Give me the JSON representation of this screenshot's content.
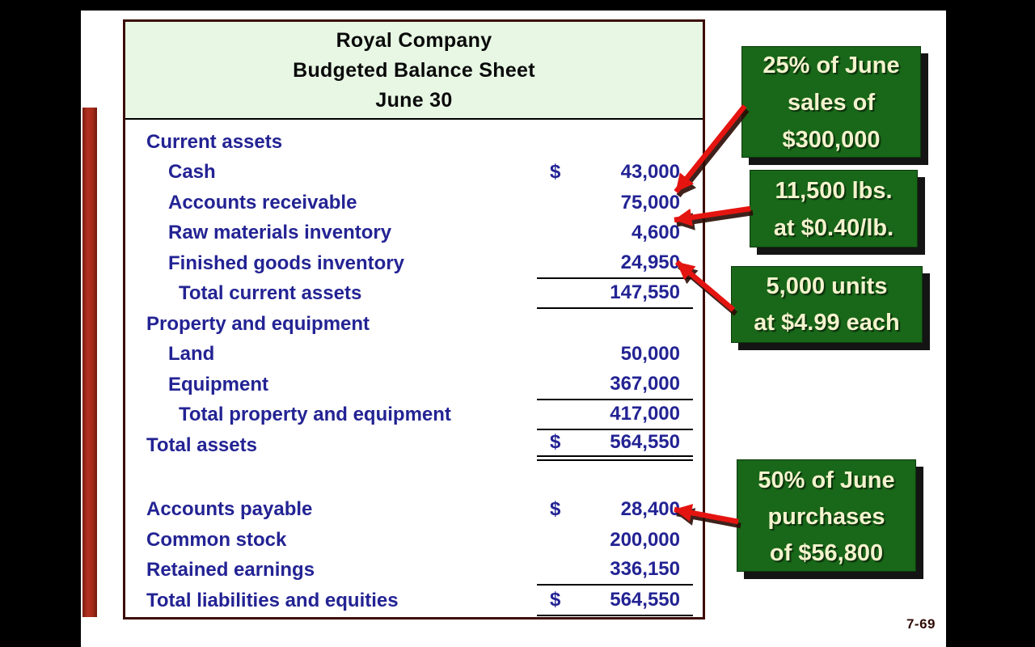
{
  "page": {
    "number": "7-69"
  },
  "sheet": {
    "title_line1": "Royal Company",
    "title_line2": "Budgeted Balance Sheet",
    "title_line3": "June 30",
    "rows": [
      {
        "label": "Current assets",
        "indent": 0
      },
      {
        "label": "Cash",
        "indent": 1,
        "dollar": "$",
        "value": "43,000"
      },
      {
        "label": "Accounts receivable",
        "indent": 1,
        "value": "75,000"
      },
      {
        "label": "Raw materials inventory",
        "indent": 1,
        "value": "4,600"
      },
      {
        "label": "Finished goods inventory",
        "indent": 1,
        "value": "24,950",
        "underline": "single"
      },
      {
        "label": "Total current assets",
        "indent": 2,
        "value": "147,550",
        "underline": "single"
      },
      {
        "label": "Property and equipment",
        "indent": 0
      },
      {
        "label": "Land",
        "indent": 1,
        "value": "50,000"
      },
      {
        "label": "Equipment",
        "indent": 1,
        "value": "367,000",
        "underline": "single"
      },
      {
        "label": "Total property and equipment",
        "indent": 2,
        "value": "417,000",
        "underline": "single"
      },
      {
        "label": "Total assets",
        "indent": 0,
        "dollar": "$",
        "value": "564,550",
        "underline": "double"
      },
      {
        "spacer": true
      },
      {
        "label": "Accounts payable",
        "indent": 0,
        "dollar": "$",
        "value": "28,400"
      },
      {
        "label": "Common stock",
        "indent": 0,
        "value": "200,000"
      },
      {
        "label": "Retained earnings",
        "indent": 0,
        "value": "336,150",
        "underline": "single"
      },
      {
        "label": "Total liabilities and equities",
        "indent": 0,
        "dollar": "$",
        "value": "564,550",
        "underline": "single"
      }
    ]
  },
  "callouts": {
    "receivable": {
      "line1": "25% of June",
      "line2": "sales of",
      "line3": "$300,000"
    },
    "raw_materials": {
      "line1": "11,500 lbs.",
      "line2": "at $0.40/lb."
    },
    "finished_goods": {
      "line1": "5,000 units",
      "line2": "at $4.99 each"
    },
    "payable": {
      "line1": "50% of June",
      "line2": "purchases",
      "line3": "of $56,800"
    }
  },
  "colors": {
    "navy": "#232394",
    "table_border": "#3b0c06",
    "header_bg": "#e7f7e4",
    "callout_bg": "#196719",
    "callout_text": "#f3f3cd",
    "arrow_red": "#e41410",
    "red_bar": "#a52a18"
  }
}
